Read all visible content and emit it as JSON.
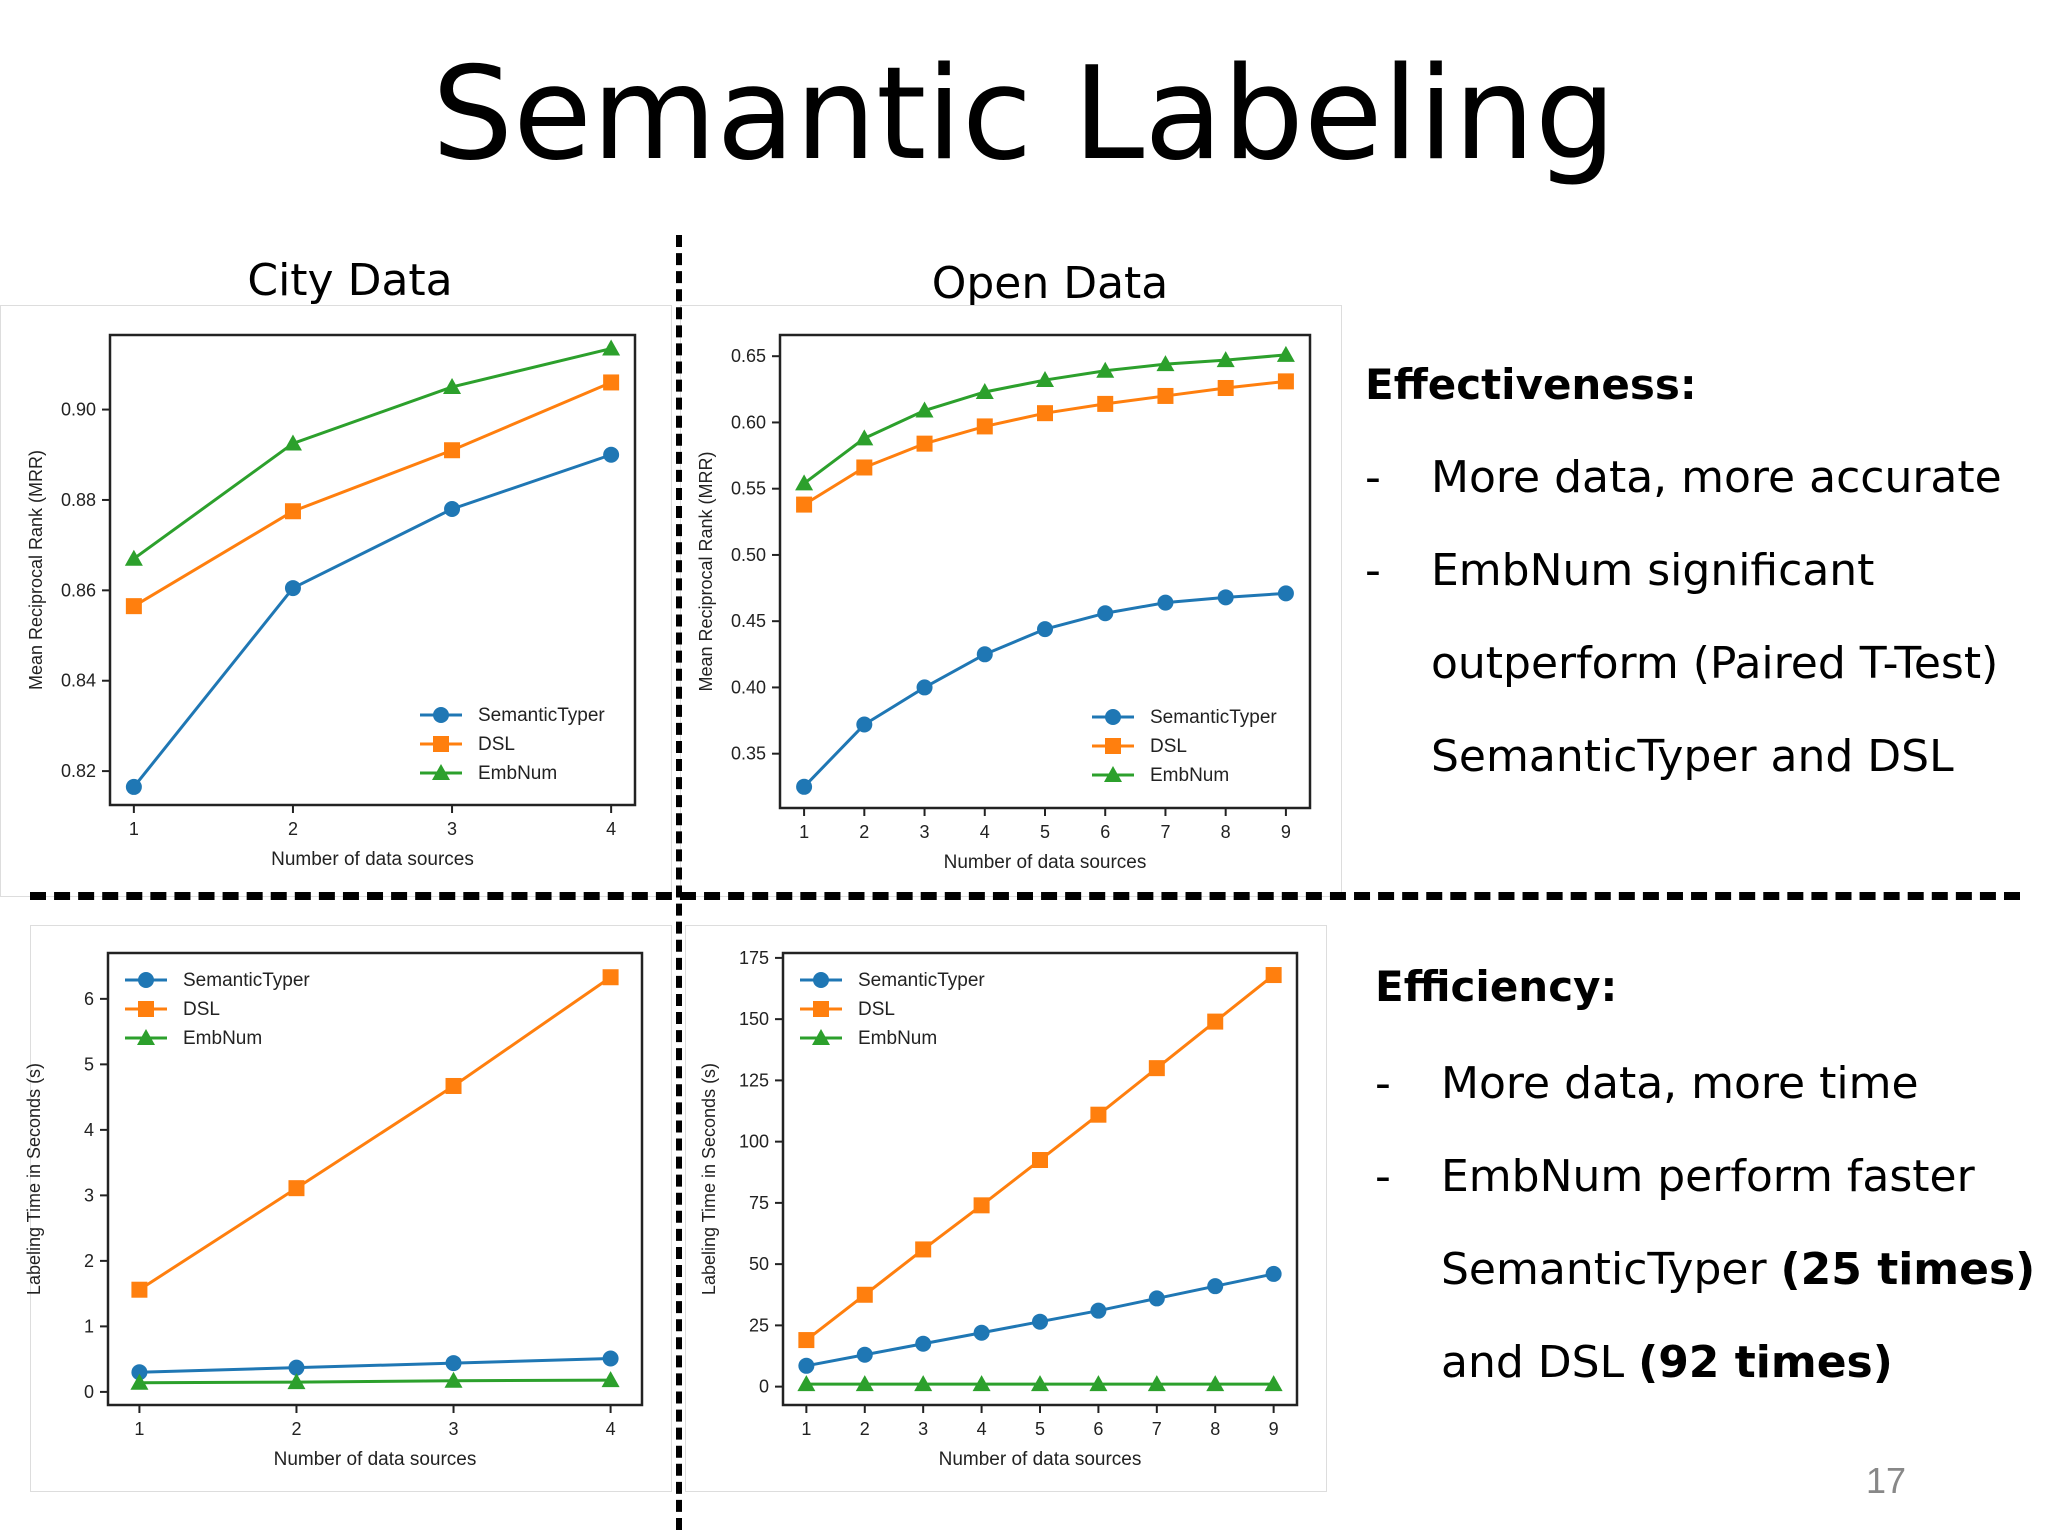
{
  "title": "Semantic Labeling",
  "page_number": "17",
  "section_labels": {
    "city": "City Data",
    "open": "Open Data"
  },
  "effectiveness": {
    "heading": "Effectiveness:",
    "bullets": [
      {
        "dash": "-",
        "text": "More data, more accurate"
      },
      {
        "dash": "-",
        "text": "EmbNum significant"
      },
      {
        "dash": "",
        "text": "outperform (Paired T-Test)"
      },
      {
        "dash": "",
        "text": "SemanticTyper and DSL"
      }
    ]
  },
  "efficiency": {
    "heading": "Efficiency:",
    "line1": "More data, more time",
    "line2": "EmbNum perform faster",
    "line3_a": "SemanticTyper ",
    "line3_b": "(25 times)",
    "line4_a": "and DSL ",
    "line4_b": "(92 times)",
    "dash": "-"
  },
  "colors": {
    "SemanticTyper": "#1f77b4",
    "DSL": "#ff7f0e",
    "EmbNum": "#2ca02c"
  },
  "chart_data": [
    {
      "id": "city-mrr",
      "type": "line",
      "xlabel": "Number of data sources",
      "ylabel": "Mean Reciprocal Rank (MRR)",
      "x": [
        1,
        2,
        3,
        4
      ],
      "xlim": [
        0.85,
        4.15
      ],
      "ylim": [
        0.8125,
        0.9165
      ],
      "yticks": [
        0.82,
        0.84,
        0.86,
        0.88,
        0.9
      ],
      "ytick_labels": [
        "0.82",
        "0.84",
        "0.86",
        "0.88",
        "0.90"
      ],
      "legend_position": "lower-right",
      "series": [
        {
          "name": "SemanticTyper",
          "marker": "circle",
          "values": [
            0.8165,
            0.8605,
            0.878,
            0.89
          ]
        },
        {
          "name": "DSL",
          "marker": "square",
          "values": [
            0.8565,
            0.8775,
            0.891,
            0.906
          ]
        },
        {
          "name": "EmbNum",
          "marker": "triangle",
          "values": [
            0.867,
            0.8925,
            0.905,
            0.9135
          ]
        }
      ]
    },
    {
      "id": "open-mrr",
      "type": "line",
      "xlabel": "Number of data sources",
      "ylabel": "Mean Reciprocal Rank (MRR)",
      "x": [
        1,
        2,
        3,
        4,
        5,
        6,
        7,
        8,
        9
      ],
      "xlim": [
        0.6,
        9.4
      ],
      "ylim": [
        0.309,
        0.666
      ],
      "yticks": [
        0.35,
        0.4,
        0.45,
        0.5,
        0.55,
        0.6,
        0.65
      ],
      "ytick_labels": [
        "0.35",
        "0.40",
        "0.45",
        "0.50",
        "0.55",
        "0.60",
        "0.65"
      ],
      "legend_position": "lower-right",
      "series": [
        {
          "name": "SemanticTyper",
          "marker": "circle",
          "values": [
            0.325,
            0.372,
            0.4,
            0.425,
            0.444,
            0.456,
            0.464,
            0.468,
            0.471
          ]
        },
        {
          "name": "DSL",
          "marker": "square",
          "values": [
            0.538,
            0.566,
            0.584,
            0.597,
            0.607,
            0.614,
            0.62,
            0.626,
            0.631
          ]
        },
        {
          "name": "EmbNum",
          "marker": "triangle",
          "values": [
            0.554,
            0.588,
            0.609,
            0.623,
            0.632,
            0.639,
            0.644,
            0.647,
            0.651
          ]
        }
      ]
    },
    {
      "id": "city-time",
      "type": "line",
      "xlabel": "Number of data sources",
      "ylabel": "Labeling Time in Seconds (s)",
      "x": [
        1,
        2,
        3,
        4
      ],
      "xlim": [
        0.8,
        4.2
      ],
      "ylim": [
        -0.2,
        6.7
      ],
      "yticks": [
        0,
        1,
        2,
        3,
        4,
        5,
        6
      ],
      "ytick_labels": [
        "0",
        "1",
        "2",
        "3",
        "4",
        "5",
        "6"
      ],
      "legend_position": "upper-left",
      "series": [
        {
          "name": "SemanticTyper",
          "marker": "circle",
          "values": [
            0.3,
            0.37,
            0.44,
            0.51
          ]
        },
        {
          "name": "DSL",
          "marker": "square",
          "values": [
            1.56,
            3.11,
            4.67,
            6.33
          ]
        },
        {
          "name": "EmbNum",
          "marker": "triangle",
          "values": [
            0.14,
            0.15,
            0.17,
            0.18
          ]
        }
      ]
    },
    {
      "id": "open-time",
      "type": "line",
      "xlabel": "Number of data sources",
      "ylabel": "Labeling Time in Seconds (s)",
      "x": [
        1,
        2,
        3,
        4,
        5,
        6,
        7,
        8,
        9
      ],
      "xlim": [
        0.6,
        9.4
      ],
      "ylim": [
        -7.5,
        177
      ],
      "yticks": [
        0,
        25,
        50,
        75,
        100,
        125,
        150,
        175
      ],
      "ytick_labels": [
        "0",
        "25",
        "50",
        "75",
        "100",
        "125",
        "150",
        "175"
      ],
      "legend_position": "upper-left",
      "series": [
        {
          "name": "SemanticTyper",
          "marker": "circle",
          "values": [
            8.5,
            13,
            17.5,
            22,
            26.5,
            31,
            36,
            41,
            46
          ]
        },
        {
          "name": "DSL",
          "marker": "square",
          "values": [
            19,
            37.5,
            56,
            74,
            92.5,
            111,
            130,
            149,
            168
          ]
        },
        {
          "name": "EmbNum",
          "marker": "triangle",
          "values": [
            1,
            1,
            1,
            1,
            1,
            1,
            1,
            1,
            1
          ]
        }
      ]
    }
  ]
}
